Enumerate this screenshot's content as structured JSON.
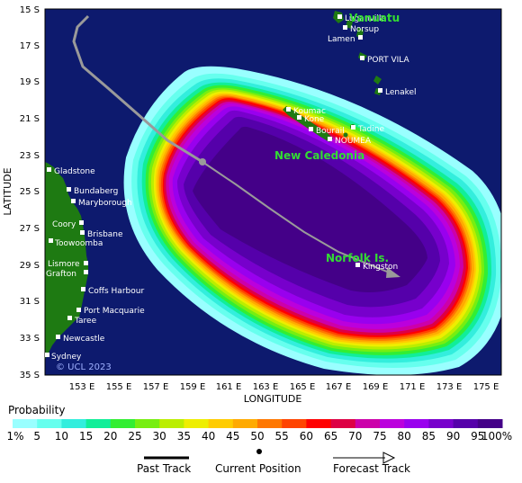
{
  "axes": {
    "x_title": "LONGITUDE",
    "y_title": "LATITUDE",
    "lat_labels": [
      "15 S",
      "17 S",
      "19 S",
      "21 S",
      "23 S",
      "25 S",
      "27 S",
      "29 S",
      "31 S",
      "33 S",
      "35 S"
    ],
    "lon_labels": [
      "153 E",
      "155 E",
      "157 E",
      "159 E",
      "161 E",
      "163 E",
      "165 E",
      "167 E",
      "169 E",
      "171 E",
      "173 E",
      "175 E"
    ]
  },
  "copyright": "© UCL 2023",
  "regions": {
    "vanuatu": "Vanuatu",
    "new_caledonia": "New Caledonia",
    "norfolk": "Norfolk Is."
  },
  "places": [
    {
      "name": "Luganville"
    },
    {
      "name": "Norsup"
    },
    {
      "name": "Lamen"
    },
    {
      "name": "PORT VILA"
    },
    {
      "name": "Lenakel"
    },
    {
      "name": "Koumac"
    },
    {
      "name": "Kone"
    },
    {
      "name": "Bourail"
    },
    {
      "name": "Tadine"
    },
    {
      "name": "NOUMEA"
    },
    {
      "name": "Kingston"
    },
    {
      "name": "Gladstone"
    },
    {
      "name": "Bundaberg"
    },
    {
      "name": "Maryborough"
    },
    {
      "name": "Coory"
    },
    {
      "name": "Brisbane"
    },
    {
      "name": "Toowoomba"
    },
    {
      "name": "Lismore"
    },
    {
      "name": "Grafton"
    },
    {
      "name": "Coffs Harbour"
    },
    {
      "name": "Port Macquarie"
    },
    {
      "name": "Taree"
    },
    {
      "name": "Newcastle"
    },
    {
      "name": "Sydney"
    }
  ],
  "legend": {
    "title": "Probability",
    "labels": [
      "1%",
      "5",
      "10",
      "15",
      "20",
      "25",
      "30",
      "35",
      "40",
      "45",
      "50",
      "55",
      "60",
      "65",
      "70",
      "75",
      "80",
      "85",
      "90",
      "95",
      "100%"
    ],
    "colors": [
      "#99ffff",
      "#66ffee",
      "#33eedd",
      "#11ee99",
      "#33ee33",
      "#77ee11",
      "#bbee00",
      "#eeee00",
      "#ffcc00",
      "#ffaa00",
      "#ff7700",
      "#ff4400",
      "#ff0000",
      "#dd0044",
      "#cc00aa",
      "#bb00dd",
      "#9900ee",
      "#7700cc",
      "#5500aa",
      "#440088"
    ],
    "past_track": "Past Track",
    "current_position": "Current Position",
    "forecast_track": "Forecast Track"
  },
  "colors": {
    "ocean": "#0d1a6e",
    "land": "#1e7a12",
    "track": "#9a9a9a",
    "region_label": "#33dd33"
  }
}
